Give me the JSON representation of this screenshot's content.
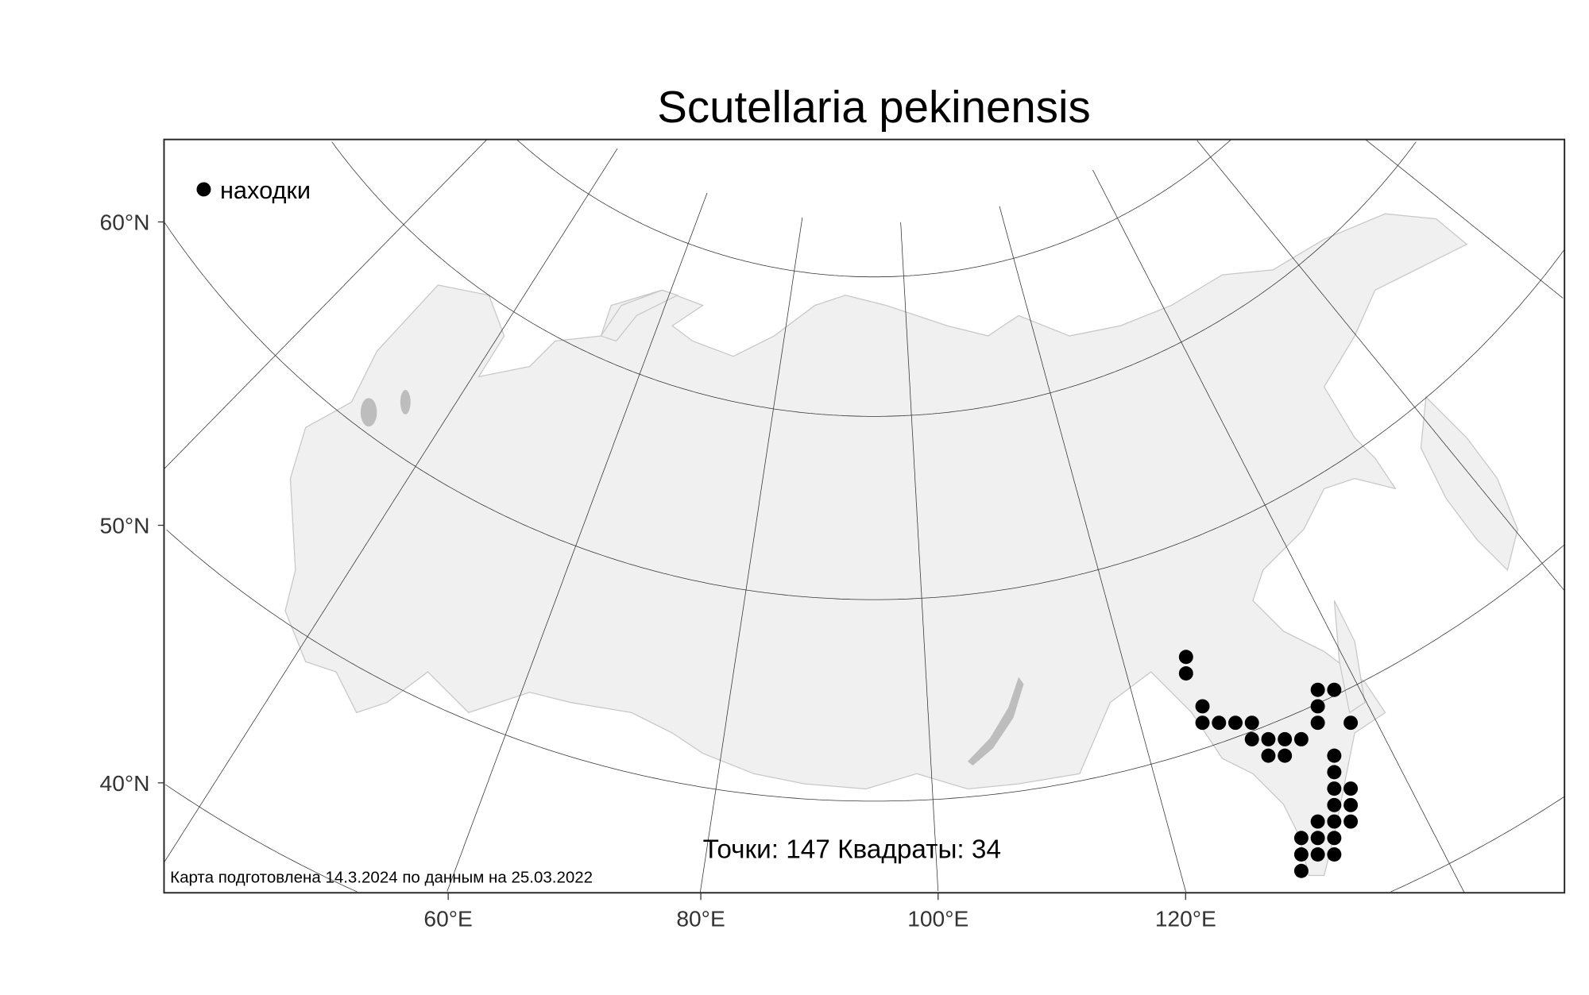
{
  "title": "Scutellaria pekinensis",
  "legend": {
    "label": "находки",
    "marker_color": "#000000"
  },
  "axes": {
    "lat_labels": [
      "60°N",
      "50°N",
      "40°N"
    ],
    "lon_labels": [
      "60°E",
      "80°E",
      "100°E",
      "120°E"
    ]
  },
  "stats_text": "Точки: 147 Квадраты: 34",
  "credit_text": "Карта подготовлена 14.3.2024 по данным на 25.03.2022",
  "colors": {
    "land": "#f0f0f0",
    "land_border": "#c8c8c8",
    "lake": "#bdbdbd",
    "graticule": "#333333",
    "dot": "#000000"
  },
  "occurrence_squares": [
    [
      0,
      0
    ],
    [
      0,
      1
    ],
    [
      1,
      3
    ],
    [
      1,
      4
    ],
    [
      2,
      4
    ],
    [
      3,
      4
    ],
    [
      4,
      4
    ],
    [
      4,
      5
    ],
    [
      5,
      5
    ],
    [
      6,
      5
    ],
    [
      7,
      5
    ],
    [
      5,
      6
    ],
    [
      6,
      6
    ],
    [
      8,
      2
    ],
    [
      9,
      2
    ],
    [
      8,
      3
    ],
    [
      8,
      4
    ],
    [
      10,
      4
    ],
    [
      9,
      6
    ],
    [
      9,
      7
    ],
    [
      9,
      8
    ],
    [
      10,
      8
    ],
    [
      9,
      9
    ],
    [
      10,
      9
    ],
    [
      8,
      10
    ],
    [
      9,
      10
    ],
    [
      10,
      10
    ],
    [
      7,
      11
    ],
    [
      8,
      11
    ],
    [
      9,
      11
    ],
    [
      7,
      12
    ],
    [
      8,
      12
    ],
    [
      9,
      12
    ],
    [
      7,
      13
    ]
  ]
}
